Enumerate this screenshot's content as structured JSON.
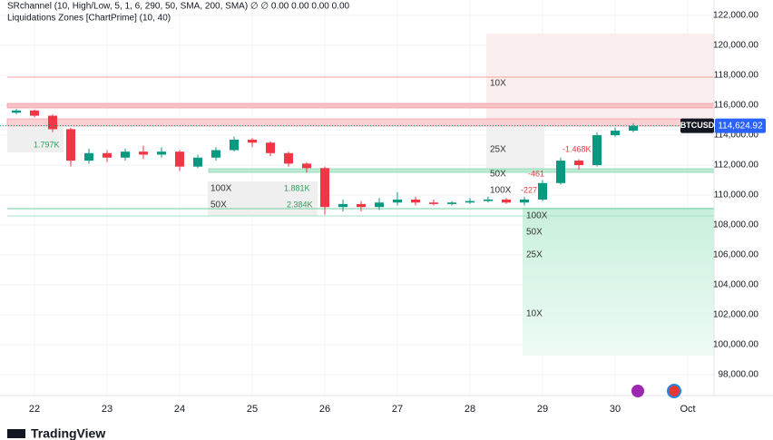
{
  "chart_data": {
    "type": "candlestick",
    "indicator_line": "SRchannel (10, High/Low, 5, 1, 6, 290, 50, SMA, 200, SMA)  ∅  ∅  0.00  0.00  0.00  0.00",
    "indicator_line_2": "Liquidations Zones [ChartPrime] (10, 40)",
    "symbol": "BTCUSD",
    "last_price": 114624.92,
    "last_price_label": "114,624.92",
    "logo": "TradingView",
    "up_color": "#089981",
    "down_color": "#f23645",
    "x": [
      21.75,
      22,
      22.25,
      22.5,
      22.75,
      23,
      23.25,
      23.5,
      23.75,
      24,
      24.25,
      24.5,
      24.75,
      25,
      25.25,
      25.5,
      25.75,
      26,
      26.25,
      26.5,
      26.75,
      27,
      27.25,
      27.5,
      27.75,
      28,
      28.25,
      28.5,
      28.75,
      29,
      29.25,
      29.5,
      29.75,
      30,
      30.25
    ],
    "open": [
      115500,
      115650,
      115300,
      114400,
      112300,
      112800,
      112500,
      112900,
      112700,
      112900,
      111900,
      112500,
      113000,
      113700,
      113500,
      112800,
      112100,
      111800,
      109200,
      109400,
      109200,
      109500,
      109700,
      109500,
      109400,
      109500,
      109600,
      109700,
      109500,
      109700,
      110800,
      112300,
      112000,
      114000,
      114300
    ],
    "high": [
      115750,
      115700,
      115400,
      114500,
      113100,
      113000,
      113100,
      113300,
      113200,
      113000,
      112700,
      113200,
      113900,
      113800,
      113600,
      112900,
      112200,
      111900,
      109700,
      109600,
      109800,
      110200,
      109900,
      109700,
      109600,
      109800,
      109900,
      109800,
      109900,
      111000,
      112500,
      112400,
      114200,
      114500,
      114800
    ],
    "low": [
      115400,
      115200,
      114200,
      111900,
      112100,
      112200,
      112300,
      112400,
      112500,
      111600,
      111800,
      112300,
      112900,
      113200,
      112600,
      111900,
      111500,
      108700,
      108900,
      108900,
      109000,
      109300,
      109300,
      109300,
      109300,
      109400,
      109500,
      109400,
      109300,
      109600,
      110700,
      111700,
      111900,
      113900,
      114200
    ],
    "close": [
      115650,
      115300,
      114400,
      112300,
      112800,
      112500,
      112900,
      112700,
      112900,
      111900,
      112500,
      113000,
      113700,
      113500,
      112800,
      112100,
      111800,
      109200,
      109400,
      109200,
      109500,
      109700,
      109500,
      109400,
      109500,
      109600,
      109700,
      109500,
      109700,
      110800,
      112300,
      112000,
      114000,
      114300,
      114620
    ],
    "xlim": [
      21.525,
      31.3625
    ],
    "xticks": [
      {
        "value": 22,
        "label": "22"
      },
      {
        "value": 23,
        "label": "23"
      },
      {
        "value": 24,
        "label": "24"
      },
      {
        "value": 25,
        "label": "25"
      },
      {
        "value": 26,
        "label": "26"
      },
      {
        "value": 27,
        "label": "27"
      },
      {
        "value": 28,
        "label": "28"
      },
      {
        "value": 29,
        "label": "29"
      },
      {
        "value": 30,
        "label": "30"
      },
      {
        "value": 31,
        "label": "Oct"
      }
    ],
    "ylim": [
      96667,
      123030
    ],
    "yticks": [
      {
        "value": 98000,
        "label": "98,000.00"
      },
      {
        "value": 100000,
        "label": "100,000.00"
      },
      {
        "value": 102000,
        "label": "102,000.00"
      },
      {
        "value": 104000,
        "label": "104,000.00"
      },
      {
        "value": 106000,
        "label": "106,000.00"
      },
      {
        "value": 108000,
        "label": "108,000.00"
      },
      {
        "value": 110000,
        "label": "110,000.00"
      },
      {
        "value": 112000,
        "label": "112,000.00"
      },
      {
        "value": 114000,
        "label": "114,000.00"
      },
      {
        "value": 116000,
        "label": "116,000.00"
      },
      {
        "value": 118000,
        "label": "118,000.00"
      },
      {
        "value": 120000,
        "label": "120,000.00"
      },
      {
        "value": 122000,
        "label": "122,000.00"
      }
    ],
    "grid": true,
    "zone_labels": [
      "10X",
      "25X",
      "50X",
      "100X",
      "100X",
      "50X",
      "100X",
      "50X",
      "25X",
      "10X"
    ],
    "zone_values": [
      "1.797K",
      "1.881K",
      "2.384K",
      "-1.468K",
      "-461",
      "-227"
    ]
  }
}
